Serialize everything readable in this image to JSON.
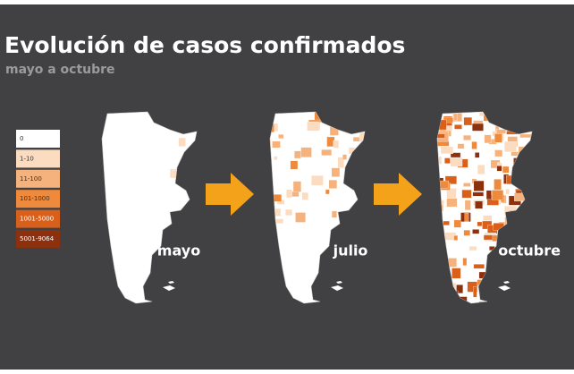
{
  "header": {
    "title": "Evolución de casos confirmados",
    "subtitle": "mayo a octubre"
  },
  "legend": {
    "items": [
      {
        "label": "0",
        "color": "#ffffff"
      },
      {
        "label": "1-10",
        "color": "#fbdcc0"
      },
      {
        "label": "11-100",
        "color": "#f6b27c"
      },
      {
        "label": "101-1000",
        "color": "#ef8a3c"
      },
      {
        "label": "1001-5000",
        "color": "#d9601a"
      },
      {
        "label": "5001-9064",
        "color": "#8c300e"
      }
    ]
  },
  "maps": [
    {
      "label": "mayo"
    },
    {
      "label": "julio"
    },
    {
      "label": "octubre"
    }
  ]
}
